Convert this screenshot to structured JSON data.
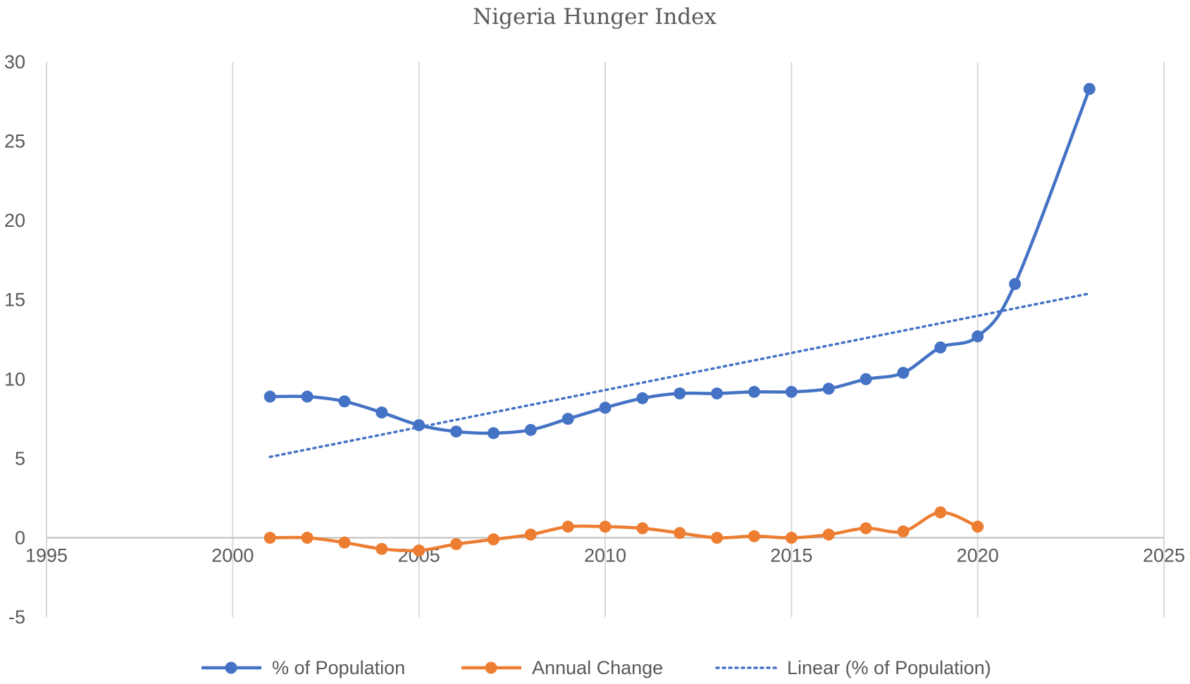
{
  "chart_data": {
    "type": "line",
    "title": "Nigeria Hunger Index",
    "xlabel": "",
    "ylabel": "",
    "xlim": [
      1995,
      2025
    ],
    "ylim": [
      -5,
      30
    ],
    "x_ticks": [
      1995,
      2000,
      2005,
      2010,
      2015,
      2020,
      2025
    ],
    "y_ticks": [
      -5,
      0,
      5,
      10,
      15,
      20,
      25,
      30
    ],
    "grid": "vertical",
    "legend_position": "bottom",
    "colors": {
      "population": "#4472c4",
      "annual_change": "#ed7d31",
      "trend": "#4472c4"
    },
    "series": [
      {
        "name": "% of Population",
        "style": "smooth-line-markers",
        "x": [
          2001,
          2002,
          2003,
          2004,
          2005,
          2006,
          2007,
          2008,
          2009,
          2010,
          2011,
          2012,
          2013,
          2014,
          2015,
          2016,
          2017,
          2018,
          2019,
          2020,
          2021,
          2023
        ],
        "values": [
          8.9,
          8.9,
          8.6,
          7.9,
          7.1,
          6.7,
          6.6,
          6.8,
          7.5,
          8.2,
          8.8,
          9.1,
          9.1,
          9.2,
          9.2,
          9.4,
          10.0,
          10.4,
          12.0,
          12.7,
          16.0,
          28.3
        ]
      },
      {
        "name": "Annual Change",
        "style": "smooth-line-markers",
        "x": [
          2001,
          2002,
          2003,
          2004,
          2005,
          2006,
          2007,
          2008,
          2009,
          2010,
          2011,
          2012,
          2013,
          2014,
          2015,
          2016,
          2017,
          2018,
          2019,
          2020
        ],
        "values": [
          0.0,
          0.0,
          -0.3,
          -0.7,
          -0.8,
          -0.4,
          -0.1,
          0.2,
          0.7,
          0.7,
          0.6,
          0.3,
          0.0,
          0.1,
          0.0,
          0.2,
          0.6,
          0.4,
          1.6,
          0.7
        ]
      },
      {
        "name": "Linear (% of Population)",
        "style": "dotted-trendline",
        "x": [
          2001,
          2023
        ],
        "values": [
          5.1,
          15.4
        ]
      }
    ]
  }
}
